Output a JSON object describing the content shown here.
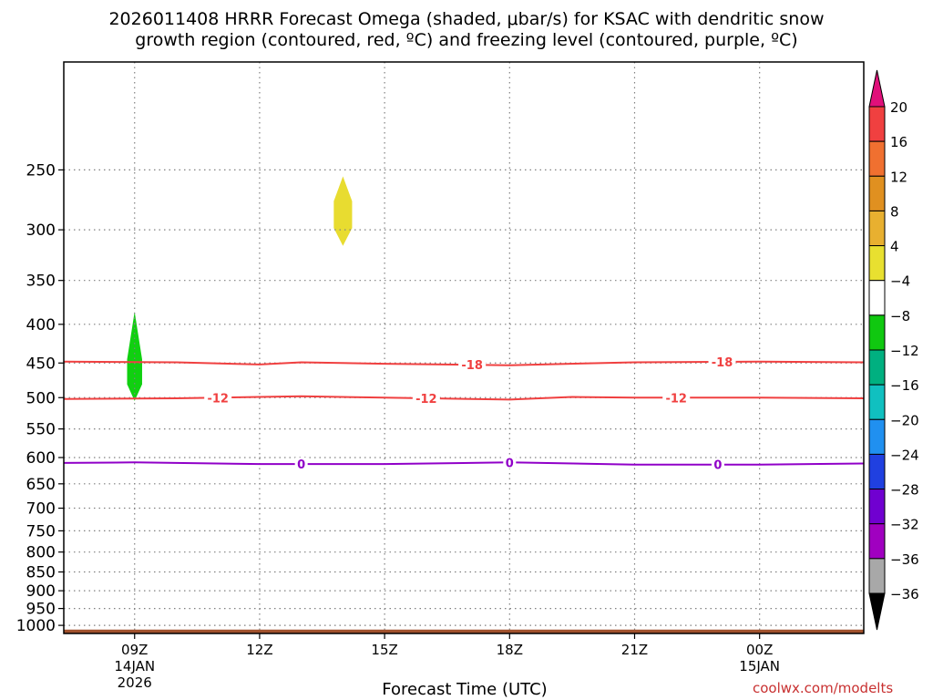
{
  "title_line1": "2026011408 HRRR Forecast Omega (shaded, μbar/s) for KSAC with dendritic snow",
  "title_line2": "growth region (contoured, red, ºC) and freezing level (contoured, purple, ºC)",
  "credit": "coolwx.com/modelts",
  "colors": {
    "dgz_contour": "#f04040",
    "freezing_contour": "#9000c8",
    "ground": "#a0522d",
    "grid": "#808080"
  },
  "chart_data": {
    "type": "time-height contour",
    "xlabel": "Forecast Time (UTC)",
    "ylabel": "",
    "x_range_hours": [
      7.3,
      26.5
    ],
    "y_range_hPa": [
      1025,
      180
    ],
    "y_scale": "log-pressure",
    "grid": true,
    "x_ticks": [
      {
        "hour": 9,
        "label": "09Z",
        "sub1": "14JAN",
        "sub2": "2026"
      },
      {
        "hour": 12,
        "label": "12Z",
        "sub1": "",
        "sub2": ""
      },
      {
        "hour": 15,
        "label": "15Z",
        "sub1": "",
        "sub2": ""
      },
      {
        "hour": 18,
        "label": "18Z",
        "sub1": "",
        "sub2": ""
      },
      {
        "hour": 21,
        "label": "21Z",
        "sub1": "",
        "sub2": ""
      },
      {
        "hour": 24,
        "label": "00Z",
        "sub1": "15JAN",
        "sub2": ""
      }
    ],
    "y_ticks": [
      {
        "value": 250,
        "label": "250"
      },
      {
        "value": 300,
        "label": "300"
      },
      {
        "value": 350,
        "label": "350"
      },
      {
        "value": 400,
        "label": "400"
      },
      {
        "value": 450,
        "label": "450"
      },
      {
        "value": 500,
        "label": "500"
      },
      {
        "value": 550,
        "label": "550"
      },
      {
        "value": 600,
        "label": "600"
      },
      {
        "value": 650,
        "label": "650"
      },
      {
        "value": 700,
        "label": "700"
      },
      {
        "value": 750,
        "label": "750"
      },
      {
        "value": 800,
        "label": "800"
      },
      {
        "value": 850,
        "label": "850"
      },
      {
        "value": 900,
        "label": "900"
      },
      {
        "value": 950,
        "label": "950"
      },
      {
        "value": 1000,
        "label": "1000"
      }
    ],
    "contours": [
      {
        "value": -18,
        "label": "-18",
        "color": "#f04040",
        "points": [
          [
            7.3,
            448
          ],
          [
            10,
            449
          ],
          [
            12,
            452
          ],
          [
            13,
            449
          ],
          [
            15,
            451
          ],
          [
            18,
            453
          ],
          [
            21,
            449
          ],
          [
            24,
            448
          ],
          [
            26.5,
            449
          ]
        ],
        "label_hours": [
          17.1,
          23.1
        ]
      },
      {
        "value": -12,
        "label": "-12",
        "color": "#f04040",
        "points": [
          [
            7.3,
            502
          ],
          [
            10,
            501
          ],
          [
            13,
            498
          ],
          [
            15,
            500
          ],
          [
            18,
            503
          ],
          [
            19.5,
            499
          ],
          [
            21,
            500
          ],
          [
            24,
            500
          ],
          [
            26.5,
            501
          ]
        ],
        "label_hours": [
          11.0,
          16.0,
          22.0
        ]
      },
      {
        "value": 0,
        "label": "0",
        "color": "#9000c8",
        "points": [
          [
            7.3,
            610
          ],
          [
            9,
            609
          ],
          [
            12,
            612
          ],
          [
            15,
            612
          ],
          [
            18,
            609
          ],
          [
            21,
            613
          ],
          [
            24,
            613
          ],
          [
            26.5,
            611
          ]
        ],
        "label_hours": [
          13.0,
          18.0,
          23.0
        ]
      }
    ],
    "omega_areas": [
      {
        "range": "-8 to -4",
        "color": "#10d010",
        "hour_center": 9,
        "hour_halfwidth": 0.18,
        "p_top": 385,
        "p_bottom": 505,
        "p_widest": 445
      },
      {
        "range": "4 to 8",
        "color": "#e8dc30",
        "hour_center": 14,
        "hour_halfwidth": 0.22,
        "p_top": 255,
        "p_bottom": 315,
        "p_widest": 275
      }
    ],
    "ground_pressure": 1013,
    "colorbar": {
      "levels": [
        {
          "label": "20",
          "color": "#f04040"
        },
        {
          "label": "16",
          "color": "#f07030"
        },
        {
          "label": "12",
          "color": "#e09020"
        },
        {
          "label": "8",
          "color": "#e8b030"
        },
        {
          "label": "4",
          "color": "#e8e030"
        },
        {
          "label": "−4",
          "color": "#ffffff"
        },
        {
          "label": "−8",
          "color": "#10c810"
        },
        {
          "label": "−12",
          "color": "#00b080"
        },
        {
          "label": "−16",
          "color": "#10c0c0"
        },
        {
          "label": "−20",
          "color": "#2090f0"
        },
        {
          "label": "−24",
          "color": "#2040e0"
        },
        {
          "label": "−28",
          "color": "#7000d0"
        },
        {
          "label": "−32",
          "color": "#a000c0"
        },
        {
          "label": "−36",
          "color": "#a8a8a8"
        }
      ],
      "top_arrow_color": "#e0107a",
      "bottom_arrow_color": "#000000"
    }
  }
}
